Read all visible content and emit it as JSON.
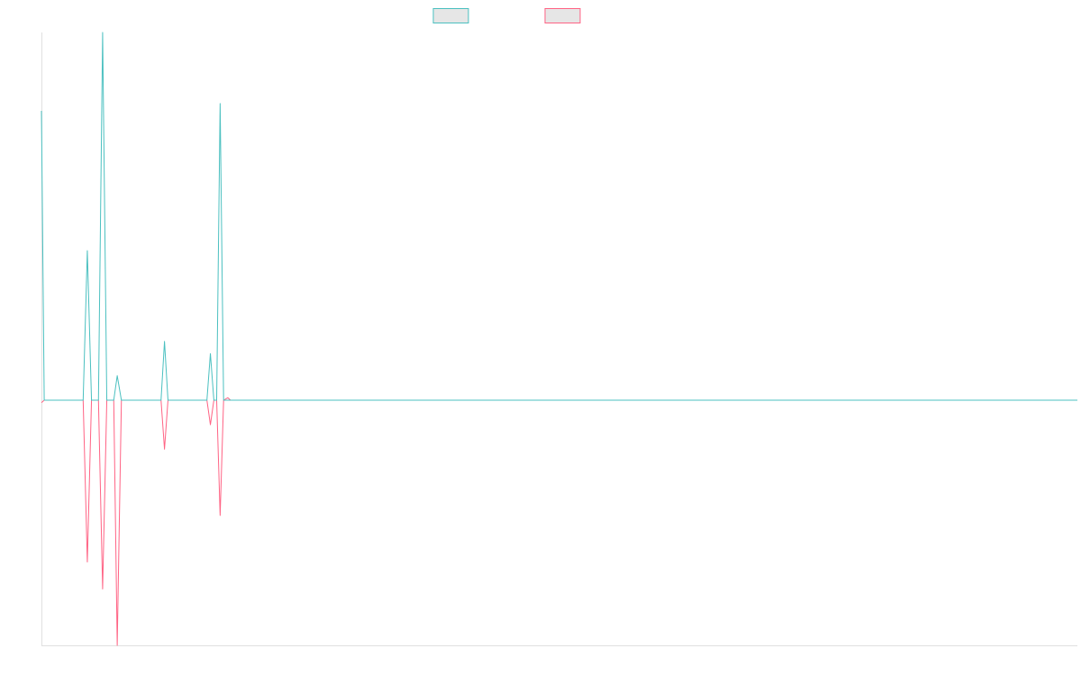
{
  "chart_data": {
    "type": "line",
    "title": "",
    "xlabel": "",
    "ylabel": "",
    "grid": false,
    "legend_position": "top-center",
    "ylim": [
      -1,
      1.5
    ],
    "x_count": 150,
    "series": [
      {
        "name": "",
        "color": "#4bc0c0",
        "fill": "#e6e6e6",
        "points": [
          [
            0,
            1.18
          ],
          [
            0.4,
            0
          ],
          [
            6,
            0
          ],
          [
            6.6,
            0.61
          ],
          [
            7.2,
            0
          ],
          [
            8.2,
            0
          ],
          [
            8.8,
            1.5
          ],
          [
            9.4,
            0
          ],
          [
            10.4,
            0
          ],
          [
            10.9,
            0.1
          ],
          [
            11.5,
            0
          ],
          [
            17.2,
            0
          ],
          [
            17.7,
            0.24
          ],
          [
            18.2,
            0
          ],
          [
            23.8,
            0
          ],
          [
            24.3,
            0.19
          ],
          [
            24.8,
            0
          ],
          [
            25.2,
            0
          ],
          [
            25.7,
            1.21
          ],
          [
            26.2,
            0
          ],
          [
            149,
            0
          ]
        ]
      },
      {
        "name": "",
        "color": "#ff6384",
        "fill": "#e6e6e6",
        "points": [
          [
            0,
            -0.01
          ],
          [
            0.4,
            0
          ],
          [
            6,
            0
          ],
          [
            6.6,
            -0.66
          ],
          [
            7.2,
            0
          ],
          [
            8.2,
            0
          ],
          [
            8.8,
            -0.77
          ],
          [
            9.4,
            0
          ],
          [
            10.4,
            0
          ],
          [
            10.9,
            -1
          ],
          [
            11.5,
            0
          ],
          [
            17.2,
            0
          ],
          [
            17.7,
            -0.2
          ],
          [
            18.2,
            0
          ],
          [
            23.8,
            0
          ],
          [
            24.3,
            -0.1
          ],
          [
            24.8,
            0
          ],
          [
            25.2,
            0
          ],
          [
            25.7,
            -0.47
          ],
          [
            26.2,
            0
          ],
          [
            26.8,
            0.01
          ],
          [
            27.2,
            0
          ],
          [
            149,
            0
          ]
        ]
      }
    ]
  }
}
